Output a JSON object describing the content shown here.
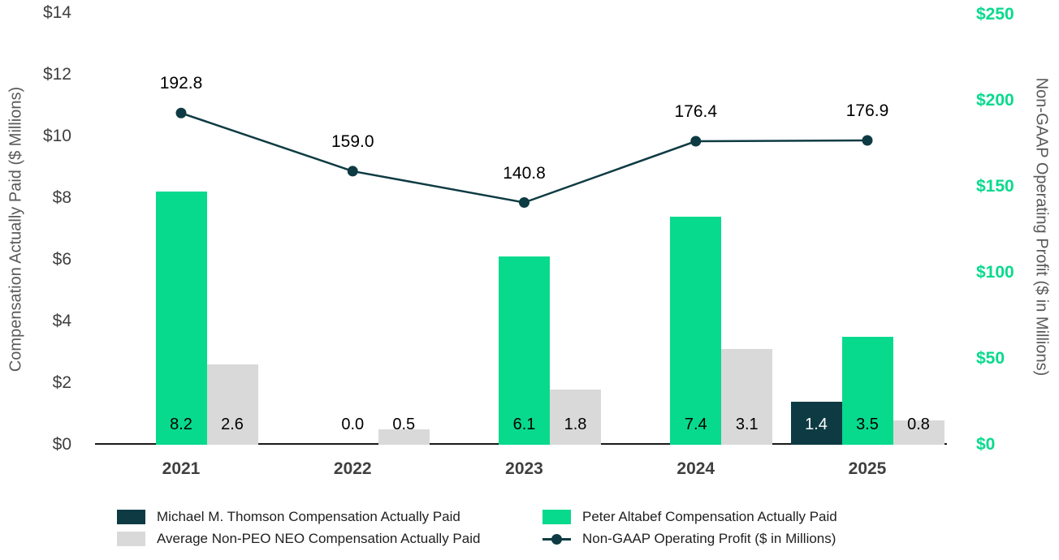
{
  "chart_data": {
    "type": "bar+line",
    "title": "",
    "categories": [
      "2021",
      "2022",
      "2023",
      "2024",
      "2025"
    ],
    "series": [
      {
        "id": "thomson",
        "name": "Michael M. Thomson Compensation Actually Paid",
        "type": "bar",
        "axis": "left",
        "color": "#0e3b43",
        "value_label_color": "#ffffff",
        "values": [
          null,
          null,
          null,
          null,
          1.4
        ]
      },
      {
        "id": "altabef",
        "name": "Peter Altabef Compensation Actually Paid",
        "type": "bar",
        "axis": "left",
        "color": "#08da8d",
        "value_label_color": "#000000",
        "values": [
          8.2,
          0.0,
          6.1,
          7.4,
          3.5
        ]
      },
      {
        "id": "avg_neo",
        "name": "Average Non-PEO NEO Compensation Actually Paid",
        "type": "bar",
        "axis": "left",
        "color": "#d9d9d9",
        "value_label_color": "#000000",
        "values": [
          2.6,
          0.5,
          1.8,
          3.1,
          0.8
        ]
      },
      {
        "id": "profit_line",
        "name": "Non-GAAP Operating Profit ($ in Millions)",
        "type": "line",
        "axis": "right",
        "color": "#0e3b43",
        "values": [
          192.8,
          159.0,
          140.8,
          176.4,
          176.9
        ]
      }
    ],
    "left_axis": {
      "title": "Compensation Actually Paid ($ Millions)",
      "tick_labels": [
        "$0",
        "$2",
        "$4",
        "$6",
        "$8",
        "$10",
        "$12",
        "$14"
      ],
      "min": 0,
      "max": 14
    },
    "right_axis": {
      "title": "Non-GAAP Operating Profit ($ in Millions)",
      "tick_labels": [
        "$0",
        "$50",
        "$100",
        "$150",
        "$200",
        "$250"
      ],
      "min": 0,
      "max": 250,
      "tick_color": "#08da8d"
    },
    "grid": "off",
    "legend_position": "bottom"
  },
  "colors": {
    "accent_green": "#08da8d",
    "dark_teal": "#0e3b43",
    "bar_gray": "#d9d9d9",
    "axis_title_gray": "#595959",
    "tick_text": "#3f3f3f"
  }
}
